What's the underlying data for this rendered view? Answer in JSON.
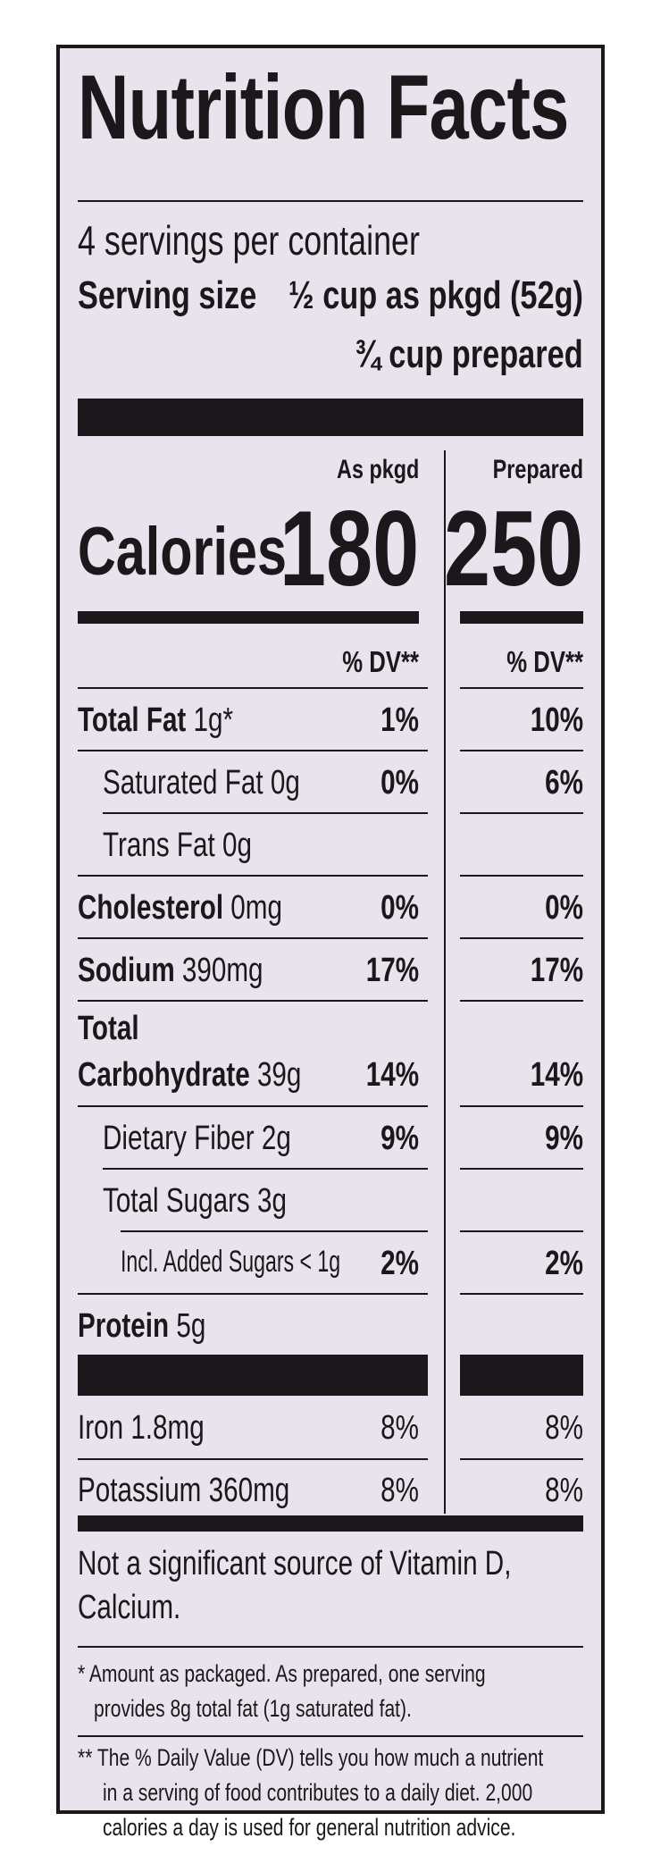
{
  "title": "Nutrition Facts",
  "servings": "4 servings per container",
  "serving_size": {
    "label": "Serving size",
    "as_packaged": "½ cup as pkgd (52g)",
    "prepared": "¾ cup prepared"
  },
  "columns": {
    "as_packaged": "As pkgd",
    "prepared": "Prepared",
    "dv": "% DV**"
  },
  "calories": {
    "label": "Calories",
    "as_packaged": "180",
    "prepared": "250"
  },
  "nutrients": [
    {
      "name": "Total Fat",
      "amount": "1g*",
      "pkgd": "1%",
      "prep": "10%"
    },
    {
      "name": "Saturated Fat",
      "amount": "0g",
      "pkgd": "0%",
      "prep": "6%"
    },
    {
      "name": "Trans Fat",
      "amount": "0g",
      "pkgd": "",
      "prep": ""
    },
    {
      "name": "Cholesterol",
      "amount": "0mg",
      "pkgd": "0%",
      "prep": "0%"
    },
    {
      "name": "Sodium",
      "amount": "390mg",
      "pkgd": "17%",
      "prep": "17%"
    },
    {
      "name": "Total",
      "name2": "Carbohydrate",
      "amount": "39g",
      "pkgd": "14%",
      "prep": "14%"
    },
    {
      "name": "Dietary Fiber",
      "amount": "2g",
      "pkgd": "9%",
      "prep": "9%"
    },
    {
      "name": "Total Sugars",
      "amount": "3g",
      "pkgd": "",
      "prep": ""
    },
    {
      "name": "Incl. Added Sugars < 1g",
      "amount": "",
      "pkgd": "2%",
      "prep": "2%"
    },
    {
      "name": "Protein",
      "amount": "5g",
      "pkgd": "",
      "prep": ""
    }
  ],
  "minerals": [
    {
      "name": "Iron",
      "amount": "1.8mg",
      "pkgd": "8%",
      "prep": "8%"
    },
    {
      "name": "Potassium",
      "amount": "360mg",
      "pkgd": "8%",
      "prep": "8%"
    }
  ],
  "not_significant": [
    "Not a significant source of Vitamin D,",
    "Calcium."
  ],
  "footnotes": [
    [
      "* Amount as packaged. As prepared, one serving",
      "provides 8g total fat (1g saturated fat)."
    ],
    [
      "** The % Daily Value (DV) tells you how much a nutrient",
      "in a serving of food contributes to a daily diet. 2,000",
      "calories a day is used for general nutrition advice."
    ]
  ]
}
